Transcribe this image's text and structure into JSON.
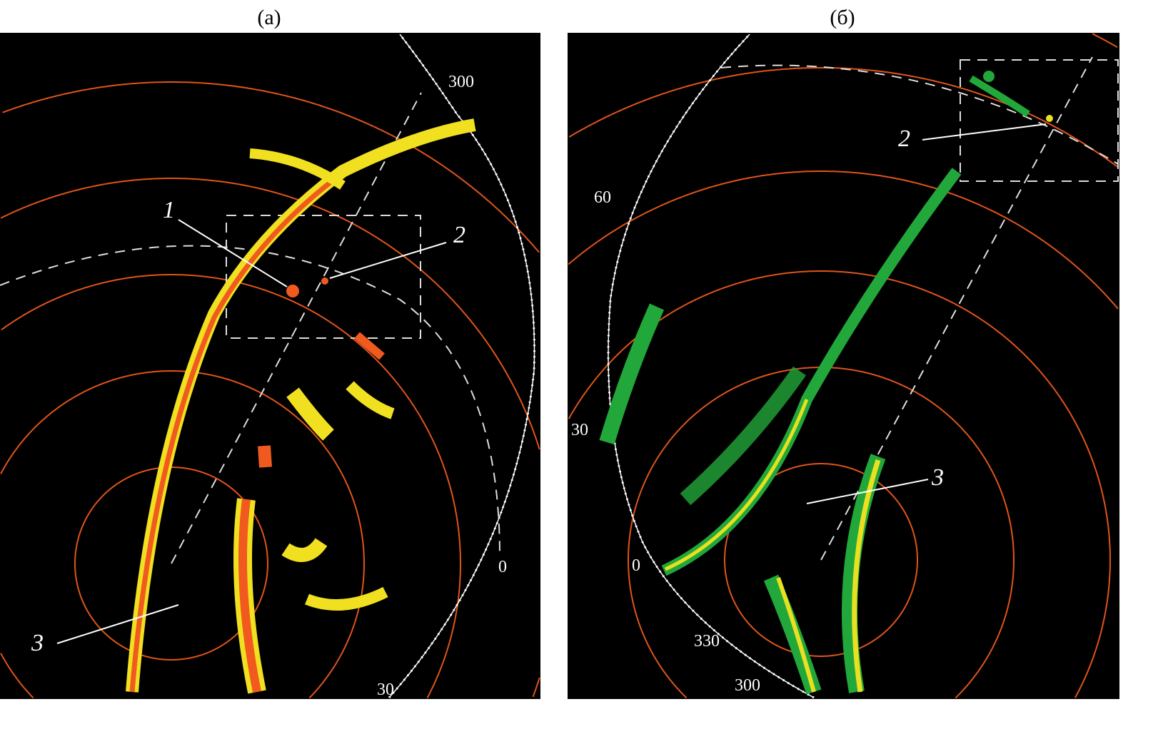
{
  "panels": [
    {
      "caption": "(а)",
      "azimuth_labels": [
        "300",
        "0",
        "30"
      ],
      "markers": [
        "1",
        "2",
        "3"
      ],
      "echo_colors": [
        "#f0e020",
        "#f05a1e"
      ]
    },
    {
      "caption": "(б)",
      "azimuth_labels": [
        "60",
        "30",
        "0",
        "330",
        "300"
      ],
      "markers": [
        "2",
        "3"
      ],
      "echo_colors": [
        "#22a83a",
        "#e8e020"
      ]
    }
  ],
  "colors": {
    "background": "#000000",
    "range_rings": "#e0541a",
    "scale": "#ffffff"
  }
}
